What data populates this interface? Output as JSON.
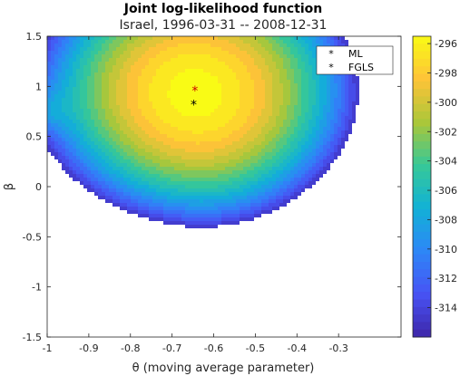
{
  "chart_data": {
    "type": "contour",
    "title": "Joint log-likelihood function",
    "subtitle": "Israel, 1996-03-31 -- 2008-12-31",
    "xlabel": "θ (moving average parameter)",
    "ylabel": "β",
    "xlim": [
      -1,
      -0.15
    ],
    "ylim": [
      -1.5,
      1.5
    ],
    "x_ticks": [
      -1,
      -0.9,
      -0.8,
      -0.7,
      -0.6,
      -0.5,
      -0.4,
      -0.3
    ],
    "x_tick_labels": [
      "-1",
      "-0.9",
      "-0.8",
      "-0.7",
      "-0.6",
      "-0.5",
      "-0.4",
      "-0.3"
    ],
    "y_ticks": [
      -1.5,
      -1,
      -0.5,
      0,
      0.5,
      1,
      1.5
    ],
    "y_tick_labels": [
      "-1.5",
      "-1",
      "-0.5",
      "0",
      "0.5",
      "1",
      "1.5"
    ],
    "colorbar": {
      "range": [
        -316,
        -295.5
      ],
      "ticks": [
        -314,
        -312,
        -310,
        -308,
        -306,
        -304,
        -302,
        -300,
        -298,
        -296
      ],
      "tick_labels": [
        "-314",
        "-312",
        "-310",
        "-308",
        "-306",
        "-304",
        "-302",
        "-300",
        "-298",
        "-296"
      ],
      "colormap": "parula"
    },
    "contour_levels": [
      -315,
      -314,
      -313,
      -312,
      -311,
      -310,
      -309,
      -308,
      -307,
      -306,
      -305,
      -304,
      -303,
      -302,
      -301,
      -300,
      -299,
      -298,
      -297,
      -296
    ],
    "legend": {
      "placement": "top-right",
      "entries": [
        {
          "label": "ML",
          "marker": "*",
          "color": "#cc0000"
        },
        {
          "label": "FGLS",
          "marker": "*",
          "color": "#000000"
        }
      ]
    },
    "points": [
      {
        "name": "ML",
        "x": -0.645,
        "y": 0.96
      },
      {
        "name": "FGLS",
        "x": -0.648,
        "y": 0.82
      }
    ],
    "surface": {
      "peak": {
        "x": -0.645,
        "y": 0.96,
        "value": -295.5
      },
      "grid": false
    }
  }
}
